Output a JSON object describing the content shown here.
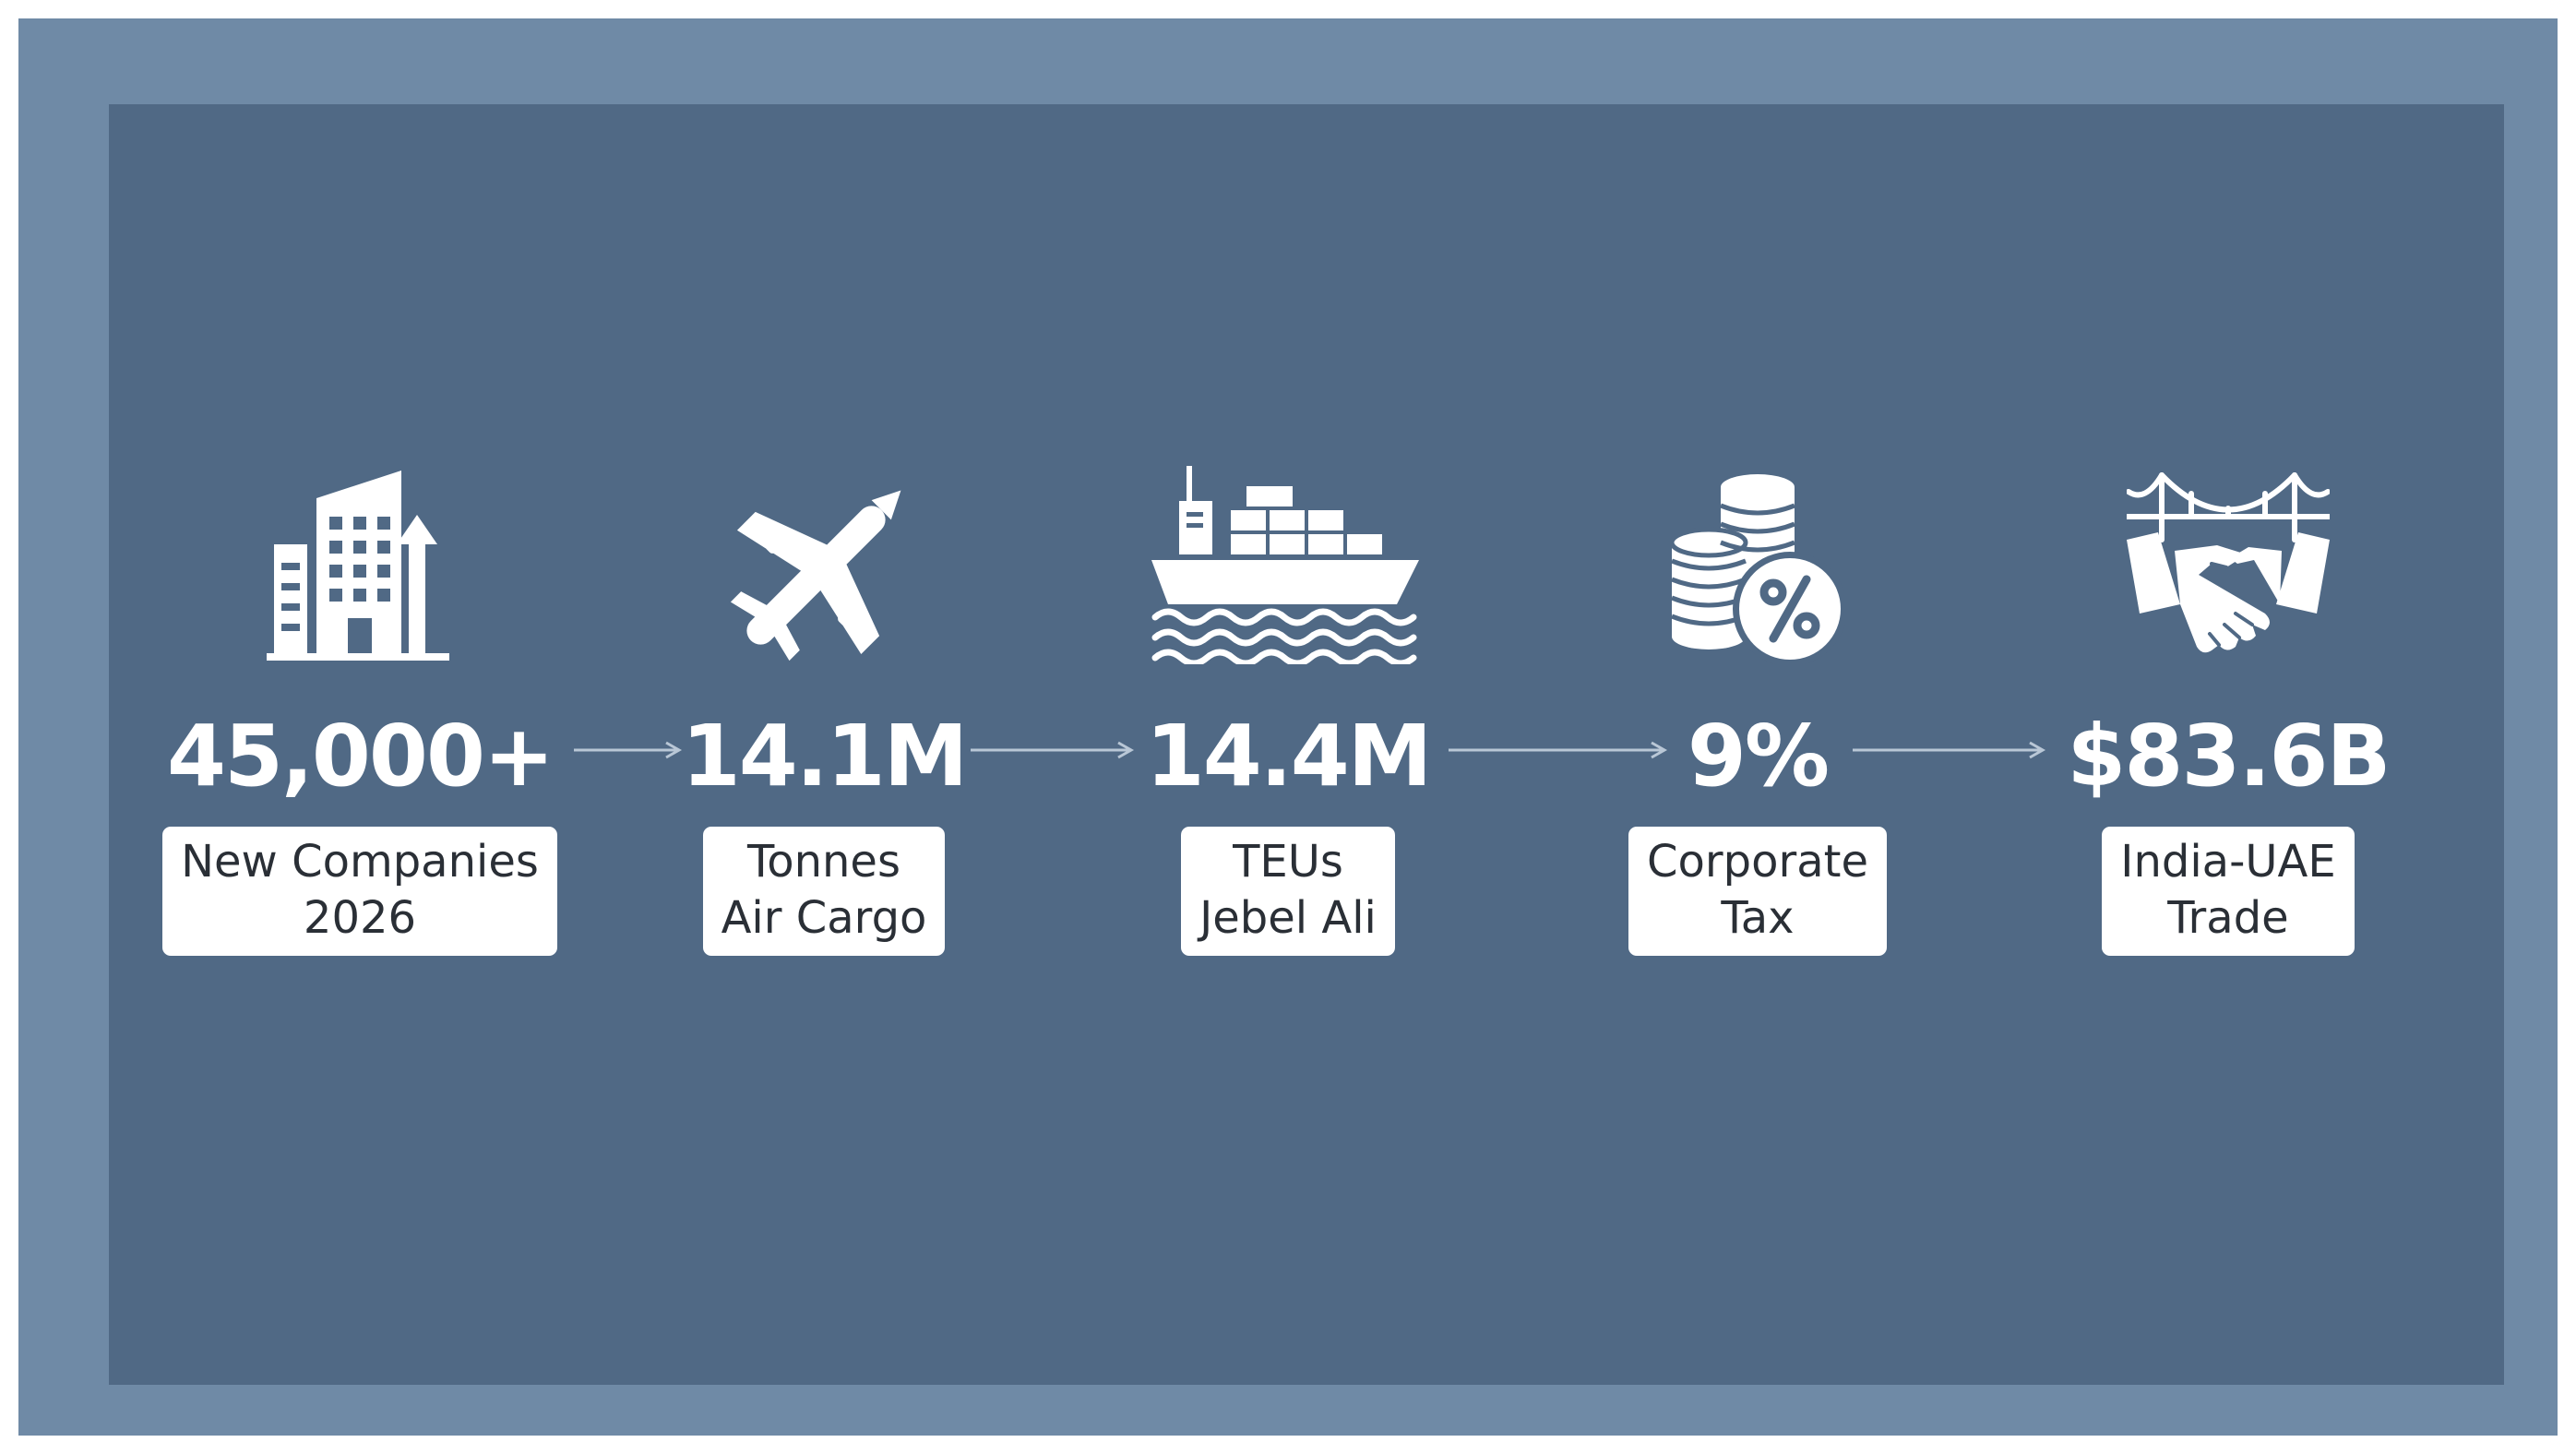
{
  "colors": {
    "frame": "#6f8aa6",
    "panel": "#506985",
    "text_light": "#ffffff",
    "text_dark": "#2a2f36",
    "arrow": "#b9c7d6"
  },
  "stats": [
    {
      "icon": "buildings-growth-icon",
      "value": "45,000+",
      "label_line1": "New Companies",
      "label_line2": "2026"
    },
    {
      "icon": "airplane-icon",
      "value": "14.1M",
      "label_line1": "Tonnes",
      "label_line2": "Air Cargo"
    },
    {
      "icon": "container-ship-icon",
      "value": "14.4M",
      "label_line1": "TEUs",
      "label_line2": "Jebel Ali"
    },
    {
      "icon": "coins-percent-icon",
      "value": "9%",
      "label_line1": "Corporate",
      "label_line2": "Tax"
    },
    {
      "icon": "bridge-handshake-icon",
      "value": "$83.6B",
      "label_line1": "India-UAE",
      "label_line2": "Trade"
    }
  ]
}
